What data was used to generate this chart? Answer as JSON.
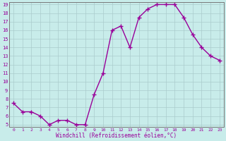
{
  "x": [
    0,
    1,
    2,
    3,
    4,
    5,
    6,
    7,
    8,
    9,
    10,
    11,
    12,
    13,
    14,
    15,
    16,
    17,
    18,
    19,
    20,
    21,
    22,
    23
  ],
  "y": [
    7.5,
    6.5,
    6.5,
    6.0,
    5.0,
    5.5,
    5.5,
    5.0,
    5.0,
    8.5,
    11.0,
    16.0,
    16.5,
    14.0,
    17.5,
    18.5,
    19.0,
    19.0,
    19.0,
    17.5,
    15.5,
    14.0,
    13.0,
    12.5
  ],
  "line_color": "#990099",
  "marker": "+",
  "marker_size": 4,
  "line_width": 1.0,
  "bg_color": "#c8ecea",
  "grid_color": "#aacccc",
  "xlabel": "Windchill (Refroidissement éolien,°C)",
  "xlabel_color": "#990099",
  "tick_color": "#990099",
  "spine_color": "#777777",
  "ylim_min": 5,
  "ylim_max": 19,
  "xlim_min": 0,
  "xlim_max": 23,
  "yticks": [
    5,
    6,
    7,
    8,
    9,
    10,
    11,
    12,
    13,
    14,
    15,
    16,
    17,
    18,
    19
  ],
  "xticks": [
    0,
    1,
    2,
    3,
    4,
    5,
    6,
    7,
    8,
    9,
    10,
    11,
    12,
    13,
    14,
    15,
    16,
    17,
    18,
    19,
    20,
    21,
    22,
    23
  ],
  "xlabel_fontsize": 5.5,
  "tick_fontsize_x": 4.5,
  "tick_fontsize_y": 5.0
}
